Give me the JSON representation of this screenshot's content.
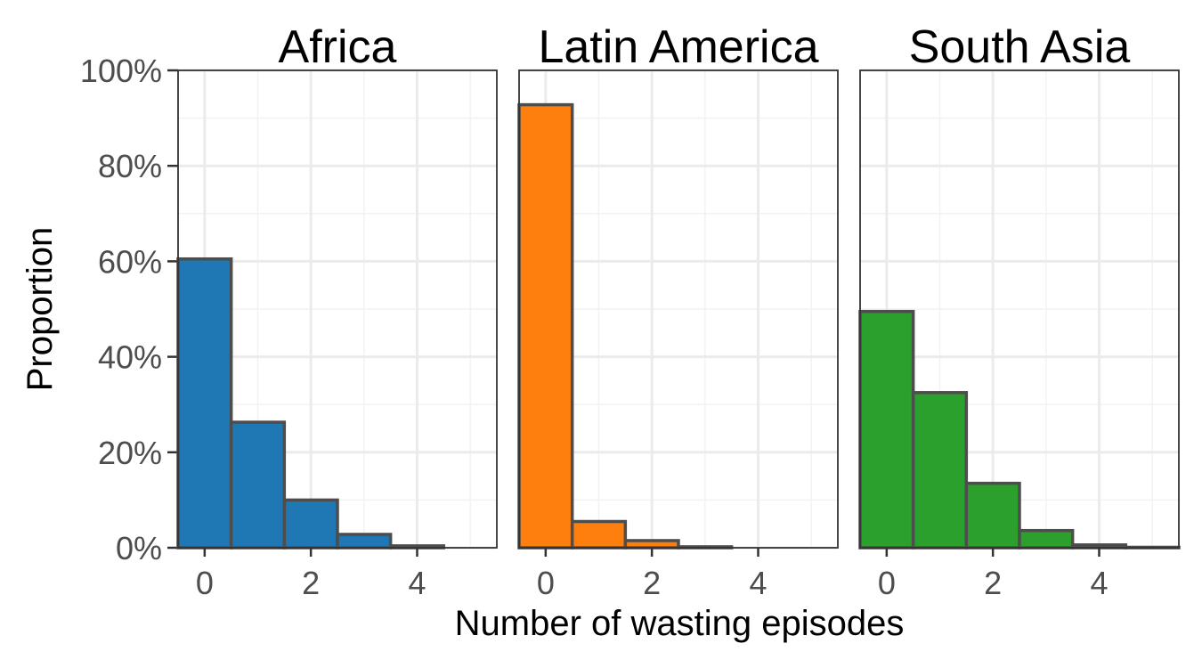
{
  "chart_data": {
    "type": "bar",
    "xlabel": "Number of wasting episodes",
    "ylabel": "Proportion",
    "xlim": [
      -0.5,
      5.5
    ],
    "ylim": [
      0,
      1
    ],
    "x_ticks": [
      0,
      2,
      4
    ],
    "y_ticks": [
      0,
      0.2,
      0.4,
      0.6,
      0.8,
      1.0
    ],
    "y_tick_labels": [
      "0%",
      "20%",
      "40%",
      "60%",
      "80%",
      "100%"
    ],
    "categories": [
      0,
      1,
      2,
      3,
      4,
      5
    ],
    "grid": true,
    "panels": [
      {
        "title": "Africa",
        "color": "#1f77b4",
        "values": [
          0.605,
          0.263,
          0.1,
          0.028,
          0.004,
          0.0
        ]
      },
      {
        "title": "Latin America",
        "color": "#ff7f0e",
        "values": [
          0.928,
          0.055,
          0.015,
          0.002,
          0.0,
          0.0
        ]
      },
      {
        "title": "South Asia",
        "color": "#2ca02c",
        "values": [
          0.495,
          0.325,
          0.135,
          0.036,
          0.006,
          0.001
        ]
      }
    ]
  }
}
